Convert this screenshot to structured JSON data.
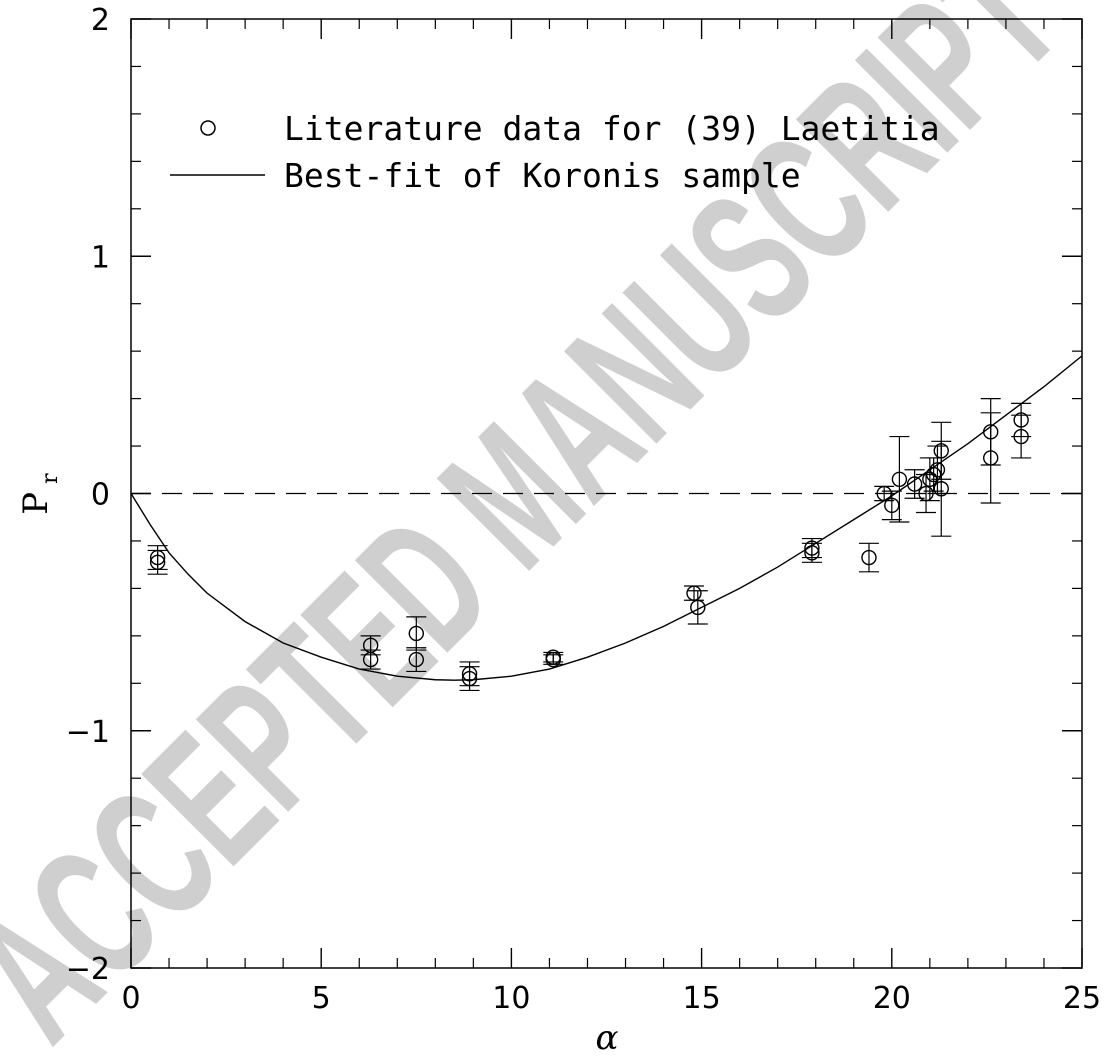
{
  "chart_data": {
    "type": "scatter",
    "title": "",
    "xlabel": "α",
    "ylabel": "P",
    "ylabel_subscript": "r",
    "xlim": [
      0,
      25
    ],
    "ylim": [
      -2,
      2
    ],
    "x_major_ticks": [
      0,
      5,
      10,
      15,
      20,
      25
    ],
    "x_tick_labels": [
      "0",
      "5",
      "10",
      "15",
      "20",
      "25"
    ],
    "y_major_ticks": [
      -2,
      -1,
      0,
      1,
      2
    ],
    "y_tick_labels": [
      "−2",
      "−1",
      "0",
      "1",
      "2"
    ],
    "grid": false,
    "reference_line": {
      "y": 0,
      "style": "dashed"
    },
    "legend_position": "top-left",
    "series": [
      {
        "name": "Literature data for (39) Laetitia",
        "marker": "open-circle",
        "points": [
          {
            "x": 0.7,
            "y": -0.27,
            "err": 0.05
          },
          {
            "x": 0.7,
            "y": -0.29,
            "err": 0.05
          },
          {
            "x": 6.3,
            "y": -0.64,
            "err": 0.04
          },
          {
            "x": 6.3,
            "y": -0.7,
            "err": 0.04
          },
          {
            "x": 7.5,
            "y": -0.59,
            "err": 0.07
          },
          {
            "x": 7.5,
            "y": -0.7,
            "err": 0.05
          },
          {
            "x": 8.9,
            "y": -0.76,
            "err": 0.05
          },
          {
            "x": 8.9,
            "y": -0.78,
            "err": 0.05
          },
          {
            "x": 11.1,
            "y": -0.69,
            "err": 0.02
          },
          {
            "x": 11.1,
            "y": -0.7,
            "err": 0.02
          },
          {
            "x": 14.8,
            "y": -0.42,
            "err": 0.03
          },
          {
            "x": 14.9,
            "y": -0.48,
            "err": 0.07
          },
          {
            "x": 17.9,
            "y": -0.23,
            "err": 0.04
          },
          {
            "x": 17.9,
            "y": -0.25,
            "err": 0.04
          },
          {
            "x": 19.4,
            "y": -0.27,
            "err": 0.06
          },
          {
            "x": 19.8,
            "y": 0.0,
            "err": 0.03
          },
          {
            "x": 20.0,
            "y": -0.05,
            "err": 0.06
          },
          {
            "x": 20.2,
            "y": 0.06,
            "err": 0.18
          },
          {
            "x": 20.6,
            "y": 0.04,
            "err": 0.06
          },
          {
            "x": 20.9,
            "y": 0.0,
            "err": 0.08
          },
          {
            "x": 21.0,
            "y": 0.06,
            "err": 0.09
          },
          {
            "x": 21.1,
            "y": 0.08,
            "err": 0.07
          },
          {
            "x": 21.2,
            "y": 0.1,
            "err": 0.1
          },
          {
            "x": 21.3,
            "y": 0.02,
            "err": 0.2
          },
          {
            "x": 21.3,
            "y": 0.18,
            "err": 0.12
          },
          {
            "x": 22.6,
            "y": 0.26,
            "err": 0.14
          },
          {
            "x": 22.6,
            "y": 0.15,
            "err": 0.19
          },
          {
            "x": 23.4,
            "y": 0.31,
            "err": 0.07
          },
          {
            "x": 23.4,
            "y": 0.24,
            "err": 0.09
          }
        ]
      },
      {
        "name": "Best-fit of Koronis sample",
        "style": "solid-line",
        "x": [
          0,
          0.5,
          1,
          1.5,
          2,
          3,
          4,
          5,
          6,
          7,
          8,
          8.5,
          9,
          10,
          11,
          12,
          13,
          14,
          15,
          16,
          17,
          18,
          19,
          20,
          21,
          22,
          23,
          24,
          25
        ],
        "y": [
          0.0,
          -0.13,
          -0.25,
          -0.34,
          -0.42,
          -0.54,
          -0.63,
          -0.69,
          -0.74,
          -0.77,
          -0.785,
          -0.787,
          -0.785,
          -0.77,
          -0.74,
          -0.69,
          -0.63,
          -0.56,
          -0.48,
          -0.4,
          -0.31,
          -0.21,
          -0.11,
          -0.01,
          0.1,
          0.21,
          0.33,
          0.45,
          0.58
        ]
      }
    ]
  },
  "watermark": {
    "text": "ACCEPTED MANUSCRIPT",
    "color": "#cfcfcf"
  }
}
